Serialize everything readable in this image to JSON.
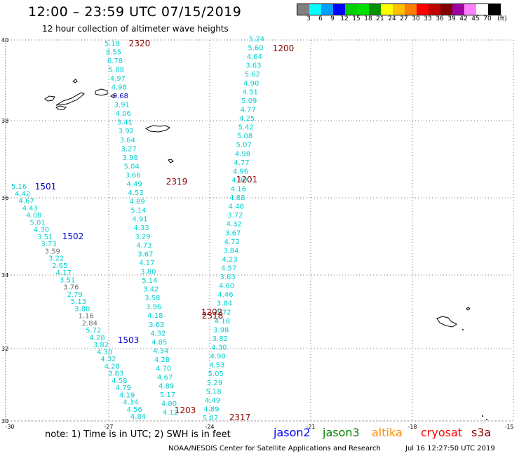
{
  "header": {
    "title": "12:00 – 23:59 UTC 07/15/2019",
    "subtitle": "12 hour collection of altimeter wave heights"
  },
  "legend": {
    "unit": "(ft)",
    "colors": [
      "#808080",
      "#00ffff",
      "#00a0ff",
      "#0000ff",
      "#00d000",
      "#00e000",
      "#009000",
      "#ffff00",
      "#ffc000",
      "#ff8000",
      "#ff0000",
      "#c00000",
      "#800000",
      "#a000a0",
      "#ff80ff",
      "#ffffff",
      "#000000"
    ],
    "labels": [
      "3",
      "6",
      "9",
      "12",
      "15",
      "18",
      "21",
      "24",
      "27",
      "30",
      "33",
      "36",
      "39",
      "42",
      "45",
      "70"
    ]
  },
  "axes": {
    "lat_labels": [
      "40",
      "38",
      "36",
      "34",
      "32",
      "30"
    ],
    "lon_labels": [
      "-30",
      "-27",
      "-24",
      "-21",
      "-18",
      "-15"
    ]
  },
  "tracks": {
    "pass_labels": [
      {
        "text": "2320",
        "color": "#8b0000"
      },
      {
        "text": "1200",
        "color": "#8b0000"
      },
      {
        "text": "2319",
        "color": "#8b0000"
      },
      {
        "text": "1201",
        "color": "#8b0000"
      },
      {
        "text": "1501",
        "color": "#0000cc"
      },
      {
        "text": "1502",
        "color": "#0000cc"
      },
      {
        "text": "1503",
        "color": "#0000cc"
      },
      {
        "text": "1202",
        "color": "#8b0000"
      },
      {
        "text": "2318",
        "color": "#8b0000"
      },
      {
        "text": "1203",
        "color": "#8b0000"
      },
      {
        "text": "2317",
        "color": "#8b0000"
      }
    ],
    "track_a": {
      "color": "#00d0d0",
      "values": [
        "5.18",
        "8.55",
        "6.78",
        "5.88",
        "4.97",
        "4.98",
        "9.68",
        "3.91",
        "4.06",
        "3.41",
        "3.92",
        "3.64",
        "3.27",
        "3.98",
        "5.04",
        "3.66",
        "4.49",
        "4.53",
        "4.89",
        "5.14",
        "4.91",
        "4.33",
        "3.29",
        "4.73",
        "3.67",
        "4.17",
        "3.80",
        "5.14",
        "3.42",
        "3.58",
        "3.96",
        "4.18",
        "3.63",
        "4.32",
        "4.85",
        "4.34",
        "4.28",
        "4.70",
        "4.67",
        "4.89",
        "5.17",
        "4.80",
        "4.12"
      ]
    },
    "track_b": {
      "color": "#00d0d0",
      "values": [
        "5.24",
        "5.60",
        "4.64",
        "3.63",
        "5.62",
        "4.90",
        "4.51",
        "5.09",
        "4.77",
        "4.25",
        "5.42",
        "5.08",
        "5.07",
        "4.98",
        "4.77",
        "4.96",
        "4.90",
        "4.16",
        "4.88",
        "4.48",
        "3.72",
        "4.32",
        "3.67",
        "4.72",
        "3.84",
        "4.23",
        "4.57",
        "3.63",
        "4.60",
        "4.46",
        "3.84",
        "3.72",
        "4.18",
        "3.98",
        "3.82",
        "4.30",
        "4.90",
        "4.53",
        "5.05",
        "5.29",
        "5.18",
        "4.49",
        "4.89",
        "5.07"
      ]
    },
    "track_c": {
      "color": "#00d0d0",
      "gray_indices": [
        9,
        14,
        18,
        19
      ],
      "values": [
        "5.16",
        "4.42",
        "4.67",
        "4.43",
        "4.08",
        "5.01",
        "4.30",
        "3.51",
        "3.73",
        "3.59",
        "3.22",
        "2.65",
        "4.17",
        "3.51",
        "3.76",
        "2.79",
        "5.13",
        "3.80",
        "1.16",
        "2.84",
        "5.72",
        "4.28",
        "3.82",
        "4.30",
        "4.32",
        "4.28",
        "3.83",
        "4.58",
        "4.79",
        "4.19",
        "4.34",
        "4.56",
        "4.84"
      ]
    }
  },
  "footer": {
    "note": "note:  1) Time is in UTC;  2) SWH is in feet",
    "satellites": [
      {
        "name": "jason2",
        "color": "#0000ff"
      },
      {
        "name": "jason3",
        "color": "#008000"
      },
      {
        "name": "altika",
        "color": "#ff8c00"
      },
      {
        "name": "cryosat",
        "color": "#ff0000"
      },
      {
        "name": "s3a",
        "color": "#8b0000"
      }
    ],
    "credit": "NOAA/NESDIS Center for Satellite Applications and Research",
    "timestamp": "Jul 16 12:27:50 UTC 2019"
  }
}
